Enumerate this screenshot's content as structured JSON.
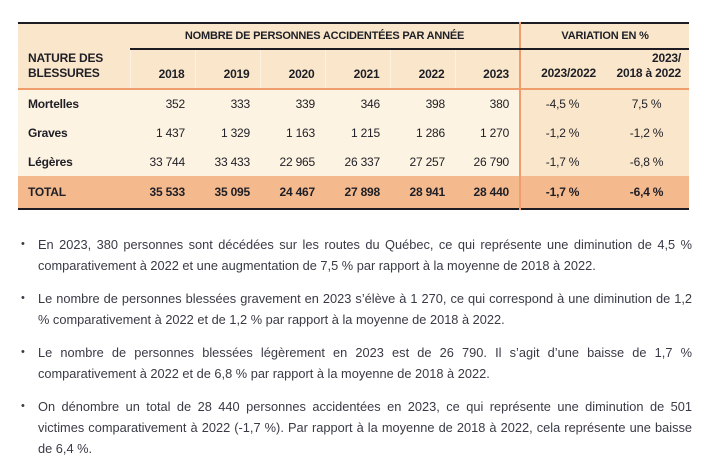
{
  "colors": {
    "header_bg": "#fae7cb",
    "body_bg": "#fdf3e2",
    "total_bg": "#f4ba8e",
    "divider_orange": "#ef9d6c",
    "rule_dark": "#1c1c22",
    "table_text": "#1e1e26",
    "body_text": "#3a3a46"
  },
  "bullet_char": "•",
  "table": {
    "group_header_years": "NOMBRE DE PERSONNES ACCIDENTÉES PAR ANNÉE",
    "group_header_variation": "VARIATION EN %",
    "row_header_line1": "NATURE DES",
    "row_header_line2": "BLESSURES",
    "years": [
      "2018",
      "2019",
      "2020",
      "2021",
      "2022",
      "2023"
    ],
    "variation_col1": "2023/2022",
    "variation_col2_line1": "2023/",
    "variation_col2_line2": "2018 à 2022",
    "rows": [
      {
        "label": "Mortelles",
        "values": [
          "352",
          "333",
          "339",
          "346",
          "398",
          "380"
        ],
        "var1": "-4,5 %",
        "var2": "7,5 %"
      },
      {
        "label": "Graves",
        "values": [
          "1 437",
          "1 329",
          "1 163",
          "1 215",
          "1 286",
          "1 270"
        ],
        "var1": "-1,2 %",
        "var2": "-1,2 %"
      },
      {
        "label": "Légères",
        "values": [
          "33 744",
          "33 433",
          "22 965",
          "26 337",
          "27 257",
          "26 790"
        ],
        "var1": "-1,7 %",
        "var2": "-6,8 %"
      }
    ],
    "total": {
      "label": "TOTAL",
      "values": [
        "35 533",
        "35 095",
        "24 467",
        "27 898",
        "28 941",
        "28 440"
      ],
      "var1": "-1,7 %",
      "var2": "-6,4 %"
    }
  },
  "bullets": [
    "En 2023, 380 personnes sont décédées sur les routes du Québec, ce qui représente une diminution de 4,5 % comparativement à 2022 et une augmentation de 7,5 % par rapport à la moyenne de 2018 à 2022.",
    "Le nombre de personnes blessées gravement en 2023 s’élève à 1 270, ce qui correspond à une diminution de 1,2 % comparativement à 2022 et de 1,2 % par rapport à la moyenne de 2018 à 2022.",
    "Le nombre de personnes blessées légèrement en 2023 est de 26 790. Il s’agit d’une baisse de 1,7 % comparativement à 2022 et de 6,8 % par rapport à la moyenne de 2018 à 2022.",
    "On dénombre un total de 28 440 personnes accidentées en 2023, ce qui représente une diminution de 501 victimes comparativement à 2022 (-1,7 %). Par rapport à la moyenne de 2018 à 2022, cela représente une baisse de 6,4 %."
  ]
}
